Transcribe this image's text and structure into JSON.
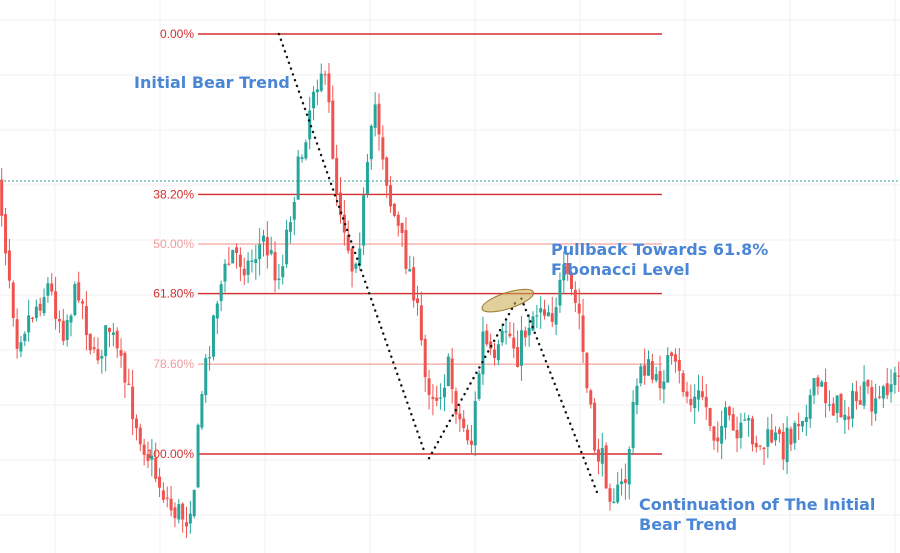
{
  "chart_data": {
    "type": "candlestick",
    "title": "",
    "xlabel": "",
    "ylabel": "",
    "grid": true,
    "colors": {
      "up": "#26a69a",
      "down": "#ef5350",
      "fib_strong": "#d32f2f",
      "fib_light": "#f28b82",
      "fib_label_strong": "#d32f2f",
      "fib_label_light": "#ef9a9a",
      "annotation": "#4a86d6",
      "dashed_hline": "#26a69a",
      "grid": "#f0f0f0",
      "ellipse_fill": "#c9a74a",
      "ellipse_stroke": "#9a7b2a"
    },
    "fib_levels": [
      {
        "label": "0.00%",
        "level": 0.0,
        "strong": true
      },
      {
        "label": "38.20%",
        "level": 0.382,
        "strong": true
      },
      {
        "label": "50.00%",
        "level": 0.5,
        "strong": false
      },
      {
        "label": "61.80%",
        "level": 0.618,
        "strong": true
      },
      {
        "label": "78.60%",
        "level": 0.786,
        "strong": false
      },
      {
        "label": "100.00%",
        "level": 1.0,
        "strong": true
      }
    ],
    "annotations": [
      {
        "id": "initial-bear-trend",
        "lines": [
          "Initial Bear Trend"
        ]
      },
      {
        "id": "pullback",
        "lines": [
          "Pullback Towards 61.8%",
          "Fibonacci Level"
        ]
      },
      {
        "id": "continuation",
        "lines": [
          "Continuation of The Initial",
          "Bear Trend"
        ]
      }
    ],
    "price_path": [
      {
        "bar": 0,
        "level": 0.42
      },
      {
        "bar": 1,
        "level": 0.33
      },
      {
        "bar": 3,
        "level": 0.5
      },
      {
        "bar": 6,
        "level": 0.72
      },
      {
        "bar": 10,
        "level": 0.66
      },
      {
        "bar": 14,
        "level": 0.6
      },
      {
        "bar": 18,
        "level": 0.7
      },
      {
        "bar": 22,
        "level": 0.6
      },
      {
        "bar": 26,
        "level": 0.78
      },
      {
        "bar": 30,
        "level": 0.7
      },
      {
        "bar": 34,
        "level": 0.83
      },
      {
        "bar": 38,
        "level": 0.95
      },
      {
        "bar": 42,
        "level": 1.05
      },
      {
        "bar": 46,
        "level": 1.13
      },
      {
        "bar": 50,
        "level": 1.15
      },
      {
        "bar": 52,
        "level": 1.07
      },
      {
        "bar": 54,
        "level": 0.85
      },
      {
        "bar": 58,
        "level": 0.62
      },
      {
        "bar": 62,
        "level": 0.52
      },
      {
        "bar": 66,
        "level": 0.55
      },
      {
        "bar": 70,
        "level": 0.49
      },
      {
        "bar": 74,
        "level": 0.58
      },
      {
        "bar": 77,
        "level": 0.42
      },
      {
        "bar": 80,
        "level": 0.28
      },
      {
        "bar": 83,
        "level": 0.12
      },
      {
        "bar": 85,
        "level": 0.08
      },
      {
        "bar": 87,
        "level": 0.18
      },
      {
        "bar": 89,
        "level": 0.37
      },
      {
        "bar": 91,
        "level": 0.45
      },
      {
        "bar": 93,
        "level": 0.55
      },
      {
        "bar": 95,
        "level": 0.48
      },
      {
        "bar": 97,
        "level": 0.33
      },
      {
        "bar": 99,
        "level": 0.17
      },
      {
        "bar": 101,
        "level": 0.28
      },
      {
        "bar": 103,
        "level": 0.4
      },
      {
        "bar": 106,
        "level": 0.5
      },
      {
        "bar": 109,
        "level": 0.6
      },
      {
        "bar": 112,
        "level": 0.82
      },
      {
        "bar": 115,
        "level": 0.86
      },
      {
        "bar": 118,
        "level": 0.8
      },
      {
        "bar": 121,
        "level": 0.92
      },
      {
        "bar": 124,
        "level": 0.97
      },
      {
        "bar": 127,
        "level": 0.72
      },
      {
        "bar": 130,
        "level": 0.8
      },
      {
        "bar": 133,
        "level": 0.7
      },
      {
        "bar": 136,
        "level": 0.76
      },
      {
        "bar": 139,
        "level": 0.68
      },
      {
        "bar": 142,
        "level": 0.64
      },
      {
        "bar": 145,
        "level": 0.66
      },
      {
        "bar": 148,
        "level": 0.58
      },
      {
        "bar": 150,
        "level": 0.62
      },
      {
        "bar": 152,
        "level": 0.67
      },
      {
        "bar": 154,
        "level": 0.85
      },
      {
        "bar": 156,
        "level": 0.98
      },
      {
        "bar": 158,
        "level": 1.02
      },
      {
        "bar": 160,
        "level": 1.08
      },
      {
        "bar": 162,
        "level": 1.1
      },
      {
        "bar": 164,
        "level": 1.06
      },
      {
        "bar": 166,
        "level": 0.9
      },
      {
        "bar": 168,
        "level": 0.78
      },
      {
        "bar": 170,
        "level": 0.8
      },
      {
        "bar": 172,
        "level": 0.84
      },
      {
        "bar": 175,
        "level": 0.78
      },
      {
        "bar": 178,
        "level": 0.82
      },
      {
        "bar": 181,
        "level": 0.88
      },
      {
        "bar": 184,
        "level": 0.86
      },
      {
        "bar": 187,
        "level": 0.95
      },
      {
        "bar": 190,
        "level": 0.92
      },
      {
        "bar": 193,
        "level": 0.97
      },
      {
        "bar": 196,
        "level": 0.93
      },
      {
        "bar": 199,
        "level": 0.99
      },
      {
        "bar": 202,
        "level": 0.96
      },
      {
        "bar": 205,
        "level": 0.98
      },
      {
        "bar": 208,
        "level": 0.93
      },
      {
        "bar": 211,
        "level": 0.88
      },
      {
        "bar": 214,
        "level": 0.84
      },
      {
        "bar": 217,
        "level": 0.87
      },
      {
        "bar": 220,
        "level": 0.9
      },
      {
        "bar": 223,
        "level": 0.88
      },
      {
        "bar": 226,
        "level": 0.86
      },
      {
        "bar": 229,
        "level": 0.9
      },
      {
        "bar": 232,
        "level": 0.83
      },
      {
        "bar": 235,
        "level": 0.82
      }
    ],
    "current_price_level": 0.35,
    "trend_lines": [
      {
        "id": "initial-bear",
        "from": {
          "bar": 74,
          "level": 0.0
        },
        "to": {
          "bar": 112,
          "level": 1.0
        }
      },
      {
        "id": "pullback-up",
        "from": {
          "bar": 113,
          "level": 1.01
        },
        "to": {
          "bar": 136,
          "level": 0.63
        }
      },
      {
        "id": "continuation-down",
        "from": {
          "bar": 137,
          "level": 0.63
        },
        "to": {
          "bar": 157,
          "level": 1.1
        }
      }
    ],
    "highlight": {
      "bar": 135,
      "level": 0.63
    }
  }
}
